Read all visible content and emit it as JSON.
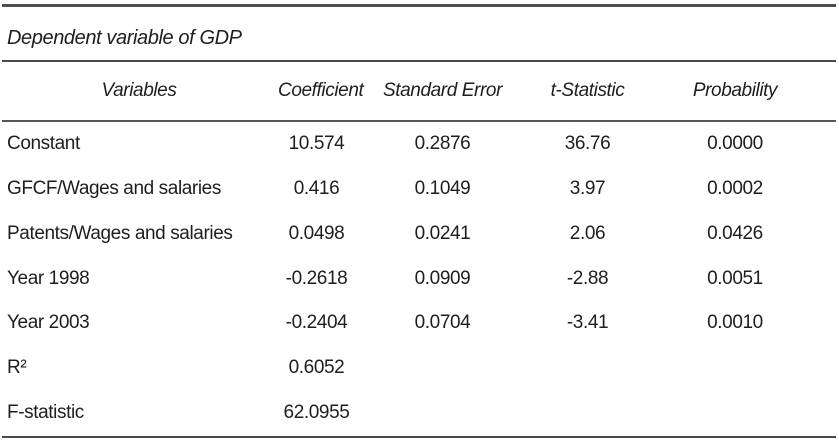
{
  "table": {
    "title": "Dependent variable of GDP",
    "columns": [
      "Variables",
      "Coefficient",
      "Standard Error",
      "t-Statistic",
      "Probability"
    ],
    "rows": [
      {
        "variable": "Constant",
        "coefficient": "10.574",
        "std_error": "0.2876",
        "t_stat": "36.76",
        "probability": "0.0000"
      },
      {
        "variable": "GFCF/Wages and salaries",
        "coefficient": "0.416",
        "std_error": "0.1049",
        "t_stat": "3.97",
        "probability": "0.0002"
      },
      {
        "variable": "Patents/Wages and salaries",
        "coefficient": "0.0498",
        "std_error": "0.0241",
        "t_stat": "2.06",
        "probability": "0.0426"
      },
      {
        "variable": "Year 1998",
        "coefficient": "-0.2618",
        "std_error": "0.0909",
        "t_stat": "-2.88",
        "probability": "0.0051"
      },
      {
        "variable": "Year 2003",
        "coefficient": "-0.2404",
        "std_error": "0.0704",
        "t_stat": "-3.41",
        "probability": "0.0010"
      },
      {
        "variable": "R²",
        "coefficient": "0.6052",
        "std_error": "",
        "t_stat": "",
        "probability": ""
      },
      {
        "variable": "F-statistic",
        "coefficient": "62.0955",
        "std_error": "",
        "t_stat": "",
        "probability": ""
      }
    ]
  }
}
